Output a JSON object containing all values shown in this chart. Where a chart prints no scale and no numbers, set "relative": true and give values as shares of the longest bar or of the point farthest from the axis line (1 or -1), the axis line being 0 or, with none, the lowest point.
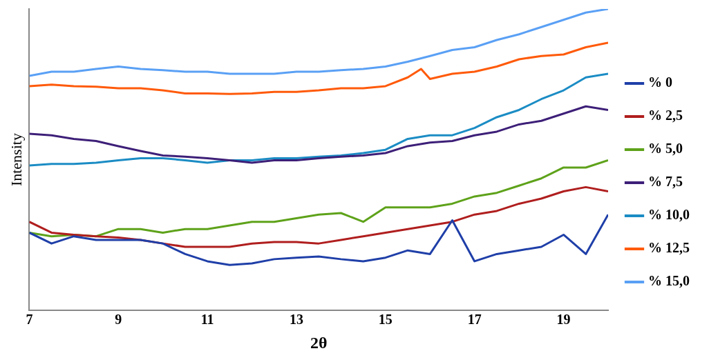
{
  "chart_data": {
    "type": "line",
    "xlabel": "2θ",
    "ylabel": "Intensity",
    "relative": true,
    "xlim": [
      7,
      20
    ],
    "xticks": [
      7,
      9,
      11,
      13,
      15,
      17,
      19
    ],
    "grid": false,
    "legend": "right",
    "marker": "none",
    "line_style": "solid",
    "x": [
      7,
      7.5,
      8,
      8.5,
      9,
      9.5,
      10,
      10.5,
      11,
      11.5,
      12,
      12.5,
      13,
      13.5,
      14,
      14.5,
      15,
      15.5,
      16,
      16.5,
      17,
      17.5,
      18,
      18.5,
      19,
      19.5,
      20
    ],
    "series": [
      {
        "name": "% 0",
        "color": "#1f3fa8",
        "values": [
          0.258,
          0.222,
          0.246,
          0.234,
          0.234,
          0.234,
          0.222,
          0.187,
          0.163,
          0.151,
          0.156,
          0.17,
          0.175,
          0.179,
          0.17,
          0.163,
          0.175,
          0.199,
          0.187,
          0.299,
          0.163,
          0.187,
          0.199,
          0.211,
          0.251,
          0.187,
          0.318
        ]
      },
      {
        "name": "% 2,5",
        "color": "#b01e1e",
        "values": [
          0.294,
          0.258,
          0.251,
          0.246,
          0.242,
          0.234,
          0.222,
          0.211,
          0.211,
          0.211,
          0.222,
          0.227,
          0.227,
          0.222,
          0.234,
          0.246,
          0.258,
          0.27,
          0.282,
          0.294,
          0.318,
          0.33,
          0.354,
          0.371,
          0.395,
          0.409,
          0.395
        ]
      },
      {
        "name": "% 5,0",
        "color": "#5ea21a",
        "values": [
          0.258,
          0.246,
          0.251,
          0.246,
          0.27,
          0.27,
          0.258,
          0.27,
          0.27,
          0.282,
          0.294,
          0.294,
          0.306,
          0.318,
          0.323,
          0.294,
          0.342,
          0.342,
          0.342,
          0.354,
          0.378,
          0.39,
          0.414,
          0.438,
          0.474,
          0.474,
          0.498
        ]
      },
      {
        "name": "% 7,5",
        "color": "#3d1f78",
        "values": [
          0.586,
          0.581,
          0.569,
          0.562,
          0.545,
          0.529,
          0.514,
          0.51,
          0.505,
          0.498,
          0.49,
          0.498,
          0.498,
          0.505,
          0.51,
          0.514,
          0.522,
          0.545,
          0.557,
          0.562,
          0.581,
          0.593,
          0.617,
          0.629,
          0.653,
          0.677,
          0.665
        ]
      },
      {
        "name": "% 10,0",
        "color": "#1b8cc4",
        "values": [
          0.481,
          0.486,
          0.486,
          0.49,
          0.498,
          0.505,
          0.505,
          0.498,
          0.49,
          0.498,
          0.498,
          0.505,
          0.505,
          0.51,
          0.514,
          0.522,
          0.533,
          0.569,
          0.581,
          0.581,
          0.605,
          0.641,
          0.665,
          0.701,
          0.73,
          0.773,
          0.785
        ]
      },
      {
        "name": "% 12,5",
        "color": "#ff5a0a",
        "x": [
          7,
          7.5,
          8,
          8.5,
          9,
          9.5,
          10,
          10.5,
          11,
          11.5,
          12,
          12.5,
          13,
          13.5,
          14,
          14.5,
          15,
          15.5,
          15.8,
          16,
          16.5,
          17,
          17.5,
          18,
          18.5,
          19,
          19.5,
          20
        ],
        "values": [
          0.744,
          0.749,
          0.744,
          0.742,
          0.737,
          0.737,
          0.73,
          0.72,
          0.72,
          0.718,
          0.72,
          0.725,
          0.725,
          0.73,
          0.737,
          0.737,
          0.744,
          0.773,
          0.801,
          0.768,
          0.785,
          0.792,
          0.809,
          0.833,
          0.844,
          0.849,
          0.873,
          0.888
        ]
      },
      {
        "name": "% 15,0",
        "color": "#5aa0f5",
        "values": [
          0.778,
          0.792,
          0.792,
          0.801,
          0.809,
          0.801,
          0.797,
          0.792,
          0.792,
          0.785,
          0.785,
          0.785,
          0.792,
          0.792,
          0.797,
          0.801,
          0.809,
          0.825,
          0.844,
          0.864,
          0.873,
          0.897,
          0.916,
          0.94,
          0.964,
          0.988,
          1
        ]
      }
    ]
  }
}
